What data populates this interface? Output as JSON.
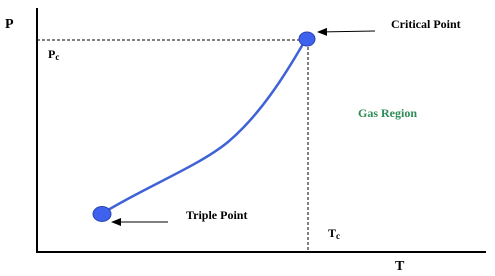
{
  "diagram": {
    "axes": {
      "y_label": "P",
      "x_label": "T"
    },
    "critical_pressure": {
      "main": "P",
      "sub": "c"
    },
    "critical_temperature": {
      "main": "T",
      "sub": "c"
    },
    "nodes": [
      {
        "label": "Critical Point"
      },
      {
        "label": "Triple Point"
      }
    ],
    "region": {
      "label": "Gas Region"
    }
  }
}
